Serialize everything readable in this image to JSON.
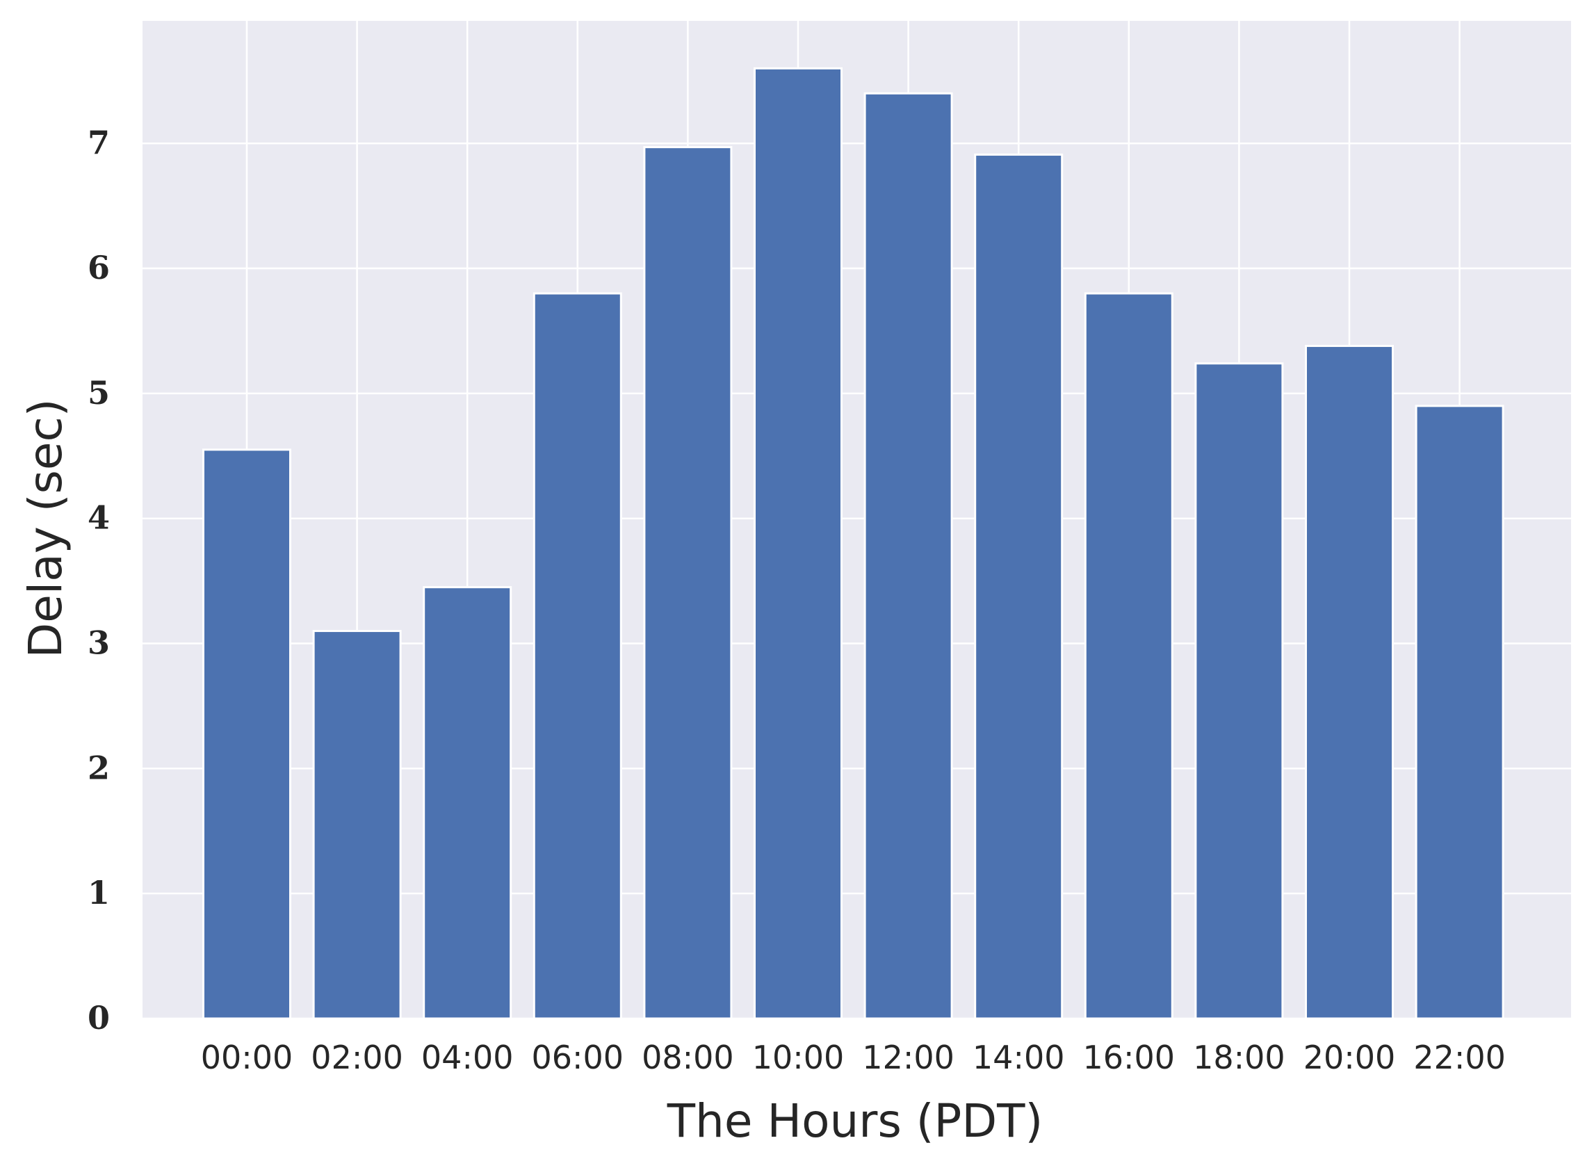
{
  "chart_data": {
    "type": "bar",
    "categories": [
      "00:00",
      "02:00",
      "04:00",
      "06:00",
      "08:00",
      "10:00",
      "12:00",
      "14:00",
      "16:00",
      "18:00",
      "20:00",
      "22:00"
    ],
    "values": [
      4.55,
      3.1,
      3.45,
      5.8,
      6.97,
      7.6,
      7.4,
      6.91,
      5.8,
      5.24,
      5.38,
      4.9
    ],
    "xlabel": "The Hours (PDT)",
    "ylabel": "Delay (sec)",
    "ylim": [
      0,
      7.98
    ],
    "yticks": [
      0,
      1,
      2,
      3,
      4,
      5,
      6,
      7
    ],
    "grid": true,
    "legend": "none",
    "colors": {
      "bar": "#4c72b0",
      "plot_background": "#eaeaf2",
      "grid": "#ffffff",
      "text": "#262626"
    }
  }
}
